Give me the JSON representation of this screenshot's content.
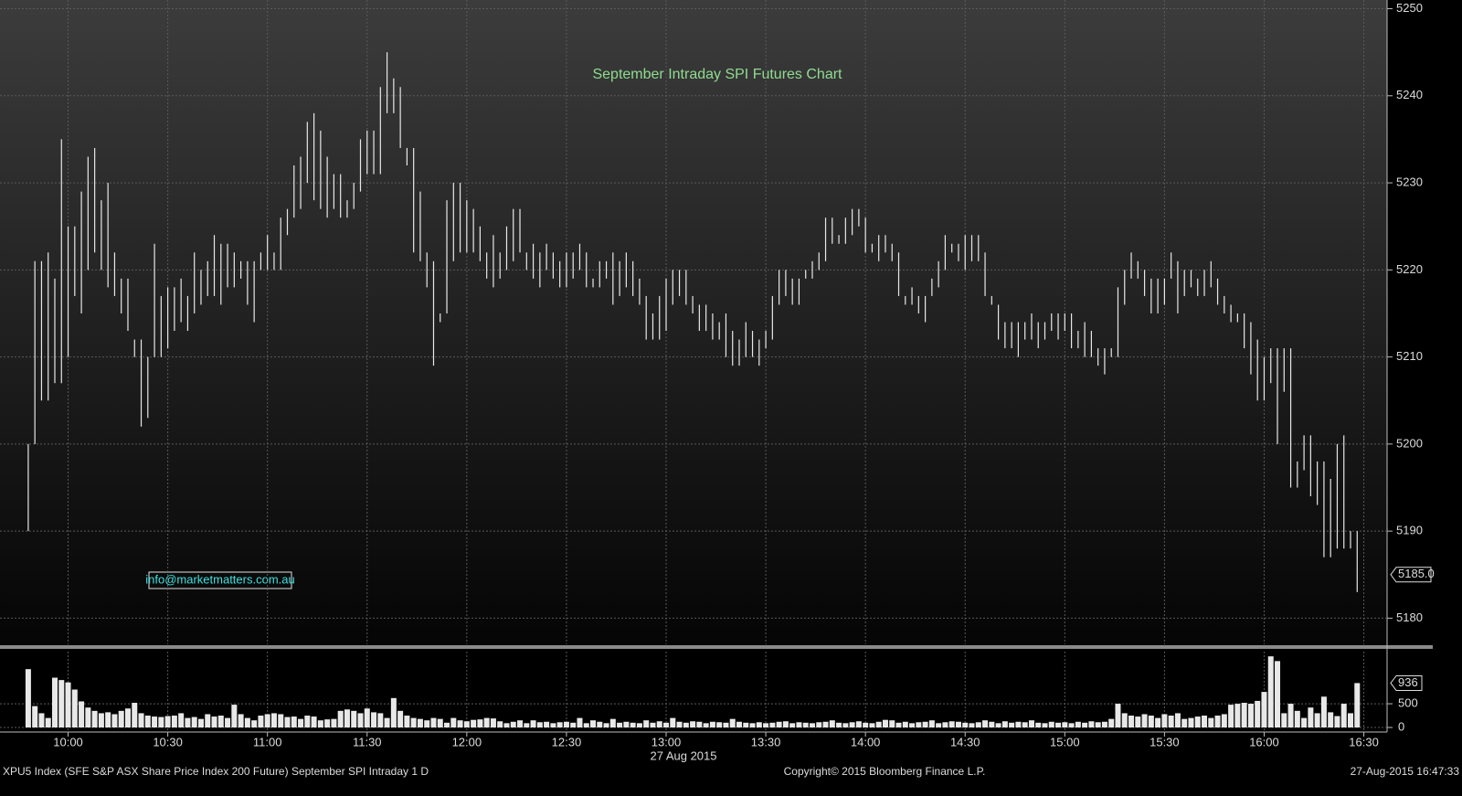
{
  "chart_data": {
    "type": "ohlc",
    "title": "September Intraday SPI Futures Chart",
    "annotation": "info@marketmatters.com.au",
    "xlabel": "27 Aug 2015",
    "color": "#e8e8e8",
    "title_color": "#8fdc8f",
    "grid": true,
    "xlim": [
      579.5,
      997
    ],
    "xticks": [
      {
        "value": 600,
        "label": "10:00"
      },
      {
        "value": 630,
        "label": "10:30"
      },
      {
        "value": 660,
        "label": "11:00"
      },
      {
        "value": 690,
        "label": "11:30"
      },
      {
        "value": 720,
        "label": "12:00"
      },
      {
        "value": 750,
        "label": "12:30"
      },
      {
        "value": 780,
        "label": "13:00"
      },
      {
        "value": 810,
        "label": "13:30"
      },
      {
        "value": 840,
        "label": "14:00"
      },
      {
        "value": 870,
        "label": "14:30"
      },
      {
        "value": 900,
        "label": "15:00"
      },
      {
        "value": 930,
        "label": "15:30"
      },
      {
        "value": 960,
        "label": "16:00"
      },
      {
        "value": 990,
        "label": "16:30"
      }
    ],
    "ylim": [
      5177,
      5251
    ],
    "yticks": [
      5180,
      5190,
      5200,
      5210,
      5220,
      5230,
      5240,
      5250
    ],
    "last_price": {
      "value": 5185,
      "label": "5185.0"
    },
    "x": [
      588,
      590,
      592,
      594,
      596,
      598,
      600,
      602,
      604,
      606,
      608,
      610,
      612,
      614,
      616,
      618,
      620,
      622,
      624,
      626,
      628,
      630,
      632,
      634,
      636,
      638,
      640,
      642,
      644,
      646,
      648,
      650,
      652,
      654,
      656,
      658,
      660,
      662,
      664,
      666,
      668,
      670,
      672,
      674,
      676,
      678,
      680,
      682,
      684,
      686,
      688,
      690,
      692,
      694,
      696,
      698,
      700,
      702,
      704,
      706,
      708,
      710,
      712,
      714,
      716,
      718,
      720,
      722,
      724,
      726,
      728,
      730,
      732,
      734,
      736,
      738,
      740,
      742,
      744,
      746,
      748,
      750,
      752,
      754,
      756,
      758,
      760,
      762,
      764,
      766,
      768,
      770,
      772,
      774,
      776,
      778,
      780,
      782,
      784,
      786,
      788,
      790,
      792,
      794,
      796,
      798,
      800,
      802,
      804,
      806,
      808,
      810,
      812,
      814,
      816,
      818,
      820,
      822,
      824,
      826,
      828,
      830,
      832,
      834,
      836,
      838,
      840,
      842,
      844,
      846,
      848,
      850,
      852,
      854,
      856,
      858,
      860,
      862,
      864,
      866,
      868,
      870,
      872,
      874,
      876,
      878,
      880,
      882,
      884,
      886,
      888,
      890,
      892,
      894,
      896,
      898,
      900,
      902,
      904,
      906,
      908,
      910,
      912,
      914,
      916,
      918,
      920,
      922,
      924,
      926,
      928,
      930,
      932,
      934,
      936,
      938,
      940,
      942,
      944,
      946,
      948,
      950,
      952,
      954,
      956,
      958,
      960,
      962,
      964,
      966,
      968,
      970,
      972,
      974,
      976,
      978,
      980,
      982,
      984,
      986,
      988
    ],
    "high": [
      5200,
      5221,
      5221,
      5222,
      5219,
      5235,
      5225,
      5225,
      5229,
      5233,
      5234,
      5228,
      5230,
      5222,
      5219,
      5219,
      5212,
      5212,
      5210,
      5223,
      5217,
      5218,
      5218,
      5219,
      5217,
      5222,
      5220,
      5221,
      5224,
      5223,
      5223,
      5222,
      5221,
      5221,
      5221,
      5222,
      5224,
      5222,
      5226,
      5227,
      5232,
      5233,
      5237,
      5238,
      5236,
      5233,
      5231,
      5231,
      5228,
      5230,
      5235,
      5236,
      5236,
      5241,
      5245,
      5242,
      5241,
      5234,
      5234,
      5229,
      5222,
      5221,
      5215,
      5228,
      5230,
      5230,
      5228,
      5227,
      5225,
      5222,
      5224,
      5222,
      5225,
      5227,
      5227,
      5222,
      5223,
      5222,
      5223,
      5222,
      5221,
      5222,
      5222,
      5223,
      5222,
      5219,
      5221,
      5221,
      5222,
      5221,
      5222,
      5221,
      5219,
      5217,
      5215,
      5217,
      5219,
      5220,
      5220,
      5220,
      5217,
      5216,
      5216,
      5215,
      5214,
      5215,
      5213,
      5212,
      5214,
      5213,
      5212,
      5213,
      5217,
      5220,
      5220,
      5219,
      5219,
      5220,
      5221,
      5222,
      5226,
      5226,
      5224,
      5226,
      5227,
      5227,
      5226,
      5223,
      5224,
      5224,
      5223,
      5222,
      5217,
      5218,
      5217,
      5217,
      5219,
      5221,
      5224,
      5223,
      5223,
      5224,
      5224,
      5224,
      5222,
      5217,
      5216,
      5214,
      5214,
      5214,
      5214,
      5215,
      5214,
      5214,
      5215,
      5215,
      5215,
      5215,
      5213,
      5214,
      5213,
      5211,
      5211,
      5211,
      5218,
      5220,
      5222,
      5221,
      5220,
      5219,
      5219,
      5219,
      5222,
      5221,
      5220,
      5220,
      5219,
      5220,
      5221,
      5219,
      5217,
      5216,
      5215,
      5215,
      5214,
      5212,
      5210,
      5211,
      5211,
      5211,
      5211,
      5198,
      5201,
      5201,
      5198,
      5198,
      5196,
      5200,
      5201,
      5190,
      5190
    ],
    "low": [
      5190,
      5200,
      5205,
      5205,
      5207,
      5207,
      5210,
      5217,
      5215,
      5220,
      5222,
      5220,
      5218,
      5217,
      5215,
      5213,
      5210,
      5202,
      5203,
      5210,
      5210,
      5211,
      5213,
      5214,
      5213,
      5215,
      5216,
      5217,
      5217,
      5216,
      5218,
      5218,
      5219,
      5216,
      5214,
      5220,
      5220,
      5220,
      5220,
      5224,
      5226,
      5227,
      5230,
      5228,
      5227,
      5226,
      5227,
      5226,
      5226,
      5227,
      5229,
      5231,
      5231,
      5231,
      5238,
      5238,
      5234,
      5232,
      5222,
      5221,
      5218,
      5209,
      5214,
      5215,
      5221,
      5222,
      5222,
      5222,
      5221,
      5219,
      5218,
      5219,
      5220,
      5221,
      5222,
      5220,
      5219,
      5218,
      5220,
      5219,
      5218,
      5218,
      5219,
      5220,
      5218,
      5218,
      5218,
      5219,
      5216,
      5217,
      5218,
      5217,
      5216,
      5212,
      5212,
      5212,
      5213,
      5216,
      5217,
      5216,
      5215,
      5213,
      5213,
      5212,
      5212,
      5210,
      5209,
      5209,
      5210,
      5210,
      5209,
      5211,
      5212,
      5216,
      5217,
      5216,
      5216,
      5219,
      5219,
      5220,
      5221,
      5223,
      5223,
      5223,
      5224,
      5225,
      5222,
      5222,
      5221,
      5222,
      5221,
      5217,
      5216,
      5216,
      5215,
      5214,
      5217,
      5218,
      5220,
      5222,
      5221,
      5220,
      5221,
      5221,
      5217,
      5216,
      5212,
      5211,
      5211,
      5210,
      5212,
      5212,
      5211,
      5212,
      5213,
      5212,
      5213,
      5211,
      5211,
      5210,
      5210,
      5209,
      5208,
      5210,
      5210,
      5216,
      5219,
      5219,
      5217,
      5215,
      5215,
      5216,
      5219,
      5215,
      5217,
      5218,
      5217,
      5217,
      5218,
      5216,
      5215,
      5214,
      5214,
      5211,
      5208,
      5205,
      5205,
      5207,
      5200,
      5206,
      5195,
      5195,
      5197,
      5194,
      5193,
      5187,
      5187,
      5188,
      5188,
      5188,
      5183
    ],
    "volume": {
      "ylim": [
        0,
        1600
      ],
      "yticks": [
        0,
        500
      ],
      "values": [
        1230,
        450,
        300,
        200,
        1050,
        1000,
        950,
        800,
        550,
        420,
        350,
        300,
        320,
        280,
        350,
        400,
        520,
        300,
        250,
        230,
        220,
        240,
        250,
        300,
        200,
        220,
        180,
        280,
        230,
        250,
        200,
        480,
        280,
        200,
        150,
        250,
        280,
        300,
        280,
        220,
        230,
        180,
        250,
        230,
        150,
        170,
        180,
        350,
        380,
        350,
        300,
        400,
        320,
        300,
        200,
        620,
        350,
        250,
        200,
        180,
        150,
        200,
        180,
        100,
        200,
        150,
        130,
        160,
        170,
        200,
        190,
        130,
        90,
        120,
        150,
        90,
        150,
        110,
        120,
        90,
        110,
        120,
        100,
        200,
        90,
        150,
        120,
        90,
        180,
        100,
        120,
        100,
        90,
        150,
        100,
        130,
        100,
        200,
        120,
        100,
        130,
        120,
        90,
        120,
        110,
        100,
        180,
        120,
        100,
        90,
        110,
        90,
        100,
        120,
        130,
        90,
        110,
        100,
        90,
        110,
        120,
        150,
        100,
        90,
        110,
        130,
        100,
        90,
        120,
        160,
        150,
        100,
        120,
        90,
        110,
        120,
        150,
        90,
        110,
        130,
        120,
        100,
        90,
        110,
        150,
        120,
        90,
        130,
        100,
        120,
        110,
        150,
        100,
        90,
        120,
        100,
        110,
        90,
        120,
        100,
        130,
        110,
        120,
        180,
        500,
        300,
        250,
        230,
        280,
        250,
        200,
        280,
        250,
        300,
        180,
        200,
        230,
        250,
        200,
        250,
        280,
        480,
        500,
        520,
        500,
        560,
        750,
        1500,
        1400,
        300,
        500,
        350,
        200,
        420,
        300,
        650,
        320,
        240,
        500,
        300,
        936
      ]
    }
  },
  "footer": {
    "left": "XPU5 Index (SFE S&P ASX Share Price Index 200 Future) September SPI Intraday 1 D",
    "center": "Copyright© 2015 Bloomberg Finance L.P.",
    "right": "27-Aug-2015 16:47:33"
  }
}
